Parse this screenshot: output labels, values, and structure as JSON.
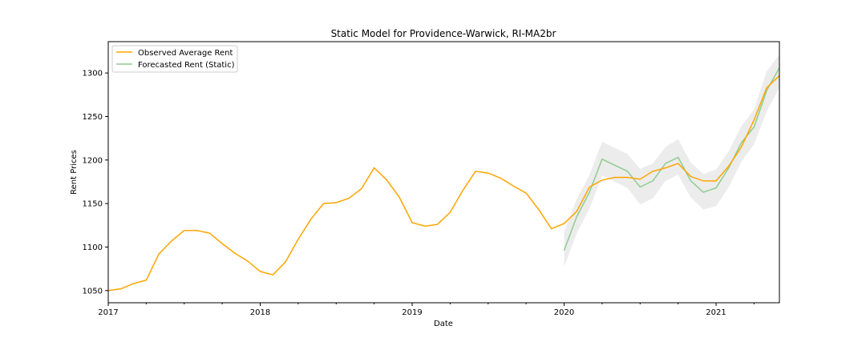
{
  "chart_data": {
    "type": "line",
    "title": "Static Model for Providence-Warwick, RI-MA2br",
    "xlabel": "Date",
    "ylabel": "Rent Prices",
    "xlim": [
      "2017-01",
      "2021-06"
    ],
    "ylim": [
      1036,
      1336
    ],
    "x_ticks": [
      "2017",
      "2018",
      "2019",
      "2020",
      "2021"
    ],
    "y_ticks": [
      1050,
      1100,
      1150,
      1200,
      1250,
      1300
    ],
    "grid": false,
    "legend_position": "top-left",
    "colors": {
      "observed": "#ffa500",
      "forecast": "#8fcc8f",
      "band": "#e6e6e6"
    },
    "series": [
      {
        "name": "Observed Average Rent",
        "x": [
          "2017-01",
          "2017-02",
          "2017-03",
          "2017-04",
          "2017-05",
          "2017-06",
          "2017-07",
          "2017-08",
          "2017-09",
          "2017-10",
          "2017-11",
          "2017-12",
          "2018-01",
          "2018-02",
          "2018-03",
          "2018-04",
          "2018-05",
          "2018-06",
          "2018-07",
          "2018-08",
          "2018-09",
          "2018-10",
          "2018-11",
          "2018-12",
          "2019-01",
          "2019-02",
          "2019-03",
          "2019-04",
          "2019-05",
          "2019-06",
          "2019-07",
          "2019-08",
          "2019-09",
          "2019-10",
          "2019-11",
          "2019-12",
          "2020-01",
          "2020-02",
          "2020-03",
          "2020-04",
          "2020-05",
          "2020-06",
          "2020-07",
          "2020-08",
          "2020-09",
          "2020-10",
          "2020-11",
          "2020-12",
          "2021-01",
          "2021-02",
          "2021-03",
          "2021-04",
          "2021-05",
          "2021-06"
        ],
        "values": [
          1050,
          1052,
          1058,
          1062,
          1092,
          1107,
          1119,
          1119,
          1116,
          1104,
          1093,
          1084,
          1072,
          1068,
          1083,
          1109,
          1132,
          1150,
          1151,
          1156,
          1167,
          1191,
          1177,
          1157,
          1128,
          1124,
          1126,
          1140,
          1165,
          1187,
          1185,
          1179,
          1170,
          1162,
          1143,
          1121,
          1127,
          1141,
          1169,
          1177,
          1180,
          1180,
          1178,
          1187,
          1191,
          1196,
          1181,
          1176,
          1176,
          1193,
          1215,
          1246,
          1283,
          1297
        ]
      },
      {
        "name": "Forecasted Rent (Static)",
        "x": [
          "2020-01",
          "2020-02",
          "2020-03",
          "2020-04",
          "2020-05",
          "2020-06",
          "2020-07",
          "2020-08",
          "2020-09",
          "2020-10",
          "2020-11",
          "2020-12",
          "2021-01",
          "2021-02",
          "2021-03",
          "2021-04",
          "2021-05",
          "2021-06"
        ],
        "values": [
          1096,
          1135,
          1163,
          1201,
          1194,
          1187,
          1169,
          1176,
          1196,
          1203,
          1176,
          1163,
          1168,
          1191,
          1220,
          1238,
          1280,
          1306
        ],
        "ci_lower": [
          1077,
          1116,
          1144,
          1182,
          1175,
          1168,
          1149,
          1156,
          1176,
          1183,
          1157,
          1143,
          1147,
          1169,
          1198,
          1218,
          1256,
          1283
        ],
        "ci_upper": [
          1117,
          1155,
          1183,
          1221,
          1214,
          1207,
          1190,
          1196,
          1215,
          1224,
          1197,
          1184,
          1189,
          1210,
          1239,
          1258,
          1302,
          1321
        ]
      }
    ]
  }
}
